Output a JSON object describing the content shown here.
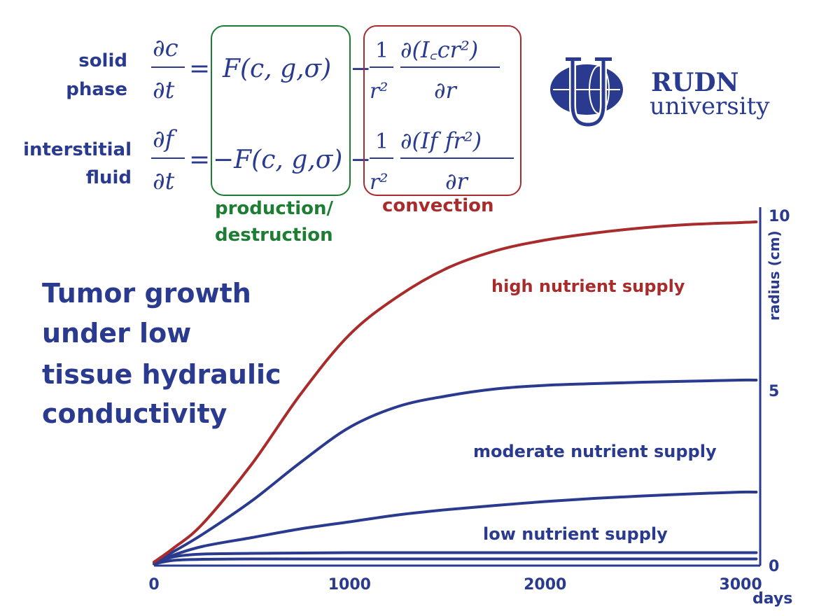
{
  "equations": {
    "row1_label_1": "solid",
    "row1_label_2": "phase",
    "row2_label_1": "interstitial",
    "row2_label_2": "fluid",
    "production_label_1": "production/",
    "production_label_2": "destruction",
    "convection_label": "convection"
  },
  "logo": {
    "name": "RUDN",
    "subtitle": "university"
  },
  "heading": {
    "line1": "Tumor growth",
    "line2": "under low",
    "line3": "tissue hydraulic",
    "line4": "conductivity"
  },
  "colors": {
    "blue": "#2a3b8f",
    "red": "#a92c2c",
    "green": "#1d7d33"
  },
  "chart_data": {
    "type": "line",
    "xlabel": "days",
    "ylabel": "radius (cm)",
    "xlim": [
      0,
      3100
    ],
    "ylim": [
      0,
      10
    ],
    "x_ticks": [
      "0",
      "1000",
      "2000",
      "3000"
    ],
    "y_ticks": [
      "0",
      "5",
      "10"
    ],
    "x": [
      0,
      100,
      250,
      500,
      750,
      1000,
      1250,
      1500,
      1750,
      2000,
      2250,
      2500,
      2750,
      3000,
      3080
    ],
    "series": [
      {
        "name": "high nutrient supply",
        "color": "#a92c2c",
        "values": [
          0.1,
          0.5,
          1.2,
          2.9,
          4.9,
          6.6,
          7.7,
          8.5,
          9.0,
          9.3,
          9.5,
          9.65,
          9.75,
          9.8,
          9.82
        ]
      },
      {
        "name": "moderate nutrient supply",
        "color": "#2a3b8f",
        "values": [
          0.1,
          0.4,
          0.9,
          1.85,
          2.95,
          3.95,
          4.55,
          4.85,
          5.05,
          5.15,
          5.2,
          5.24,
          5.27,
          5.3,
          5.3
        ]
      },
      {
        "name": "low nutrient supply",
        "color": "#2a3b8f",
        "values": [
          0.05,
          0.3,
          0.55,
          0.8,
          1.05,
          1.25,
          1.45,
          1.6,
          1.72,
          1.83,
          1.92,
          1.99,
          2.05,
          2.1,
          2.1
        ]
      },
      {
        "name": "",
        "color": "#2a3b8f",
        "values": [
          0.05,
          0.25,
          0.33,
          0.35,
          0.36,
          0.37,
          0.37,
          0.37,
          0.37,
          0.37,
          0.37,
          0.37,
          0.37,
          0.37,
          0.37
        ]
      },
      {
        "name": "",
        "color": "#2a3b8f",
        "values": [
          0.05,
          0.15,
          0.18,
          0.19,
          0.19,
          0.19,
          0.19,
          0.19,
          0.19,
          0.19,
          0.19,
          0.19,
          0.19,
          0.19,
          0.19
        ]
      }
    ]
  }
}
